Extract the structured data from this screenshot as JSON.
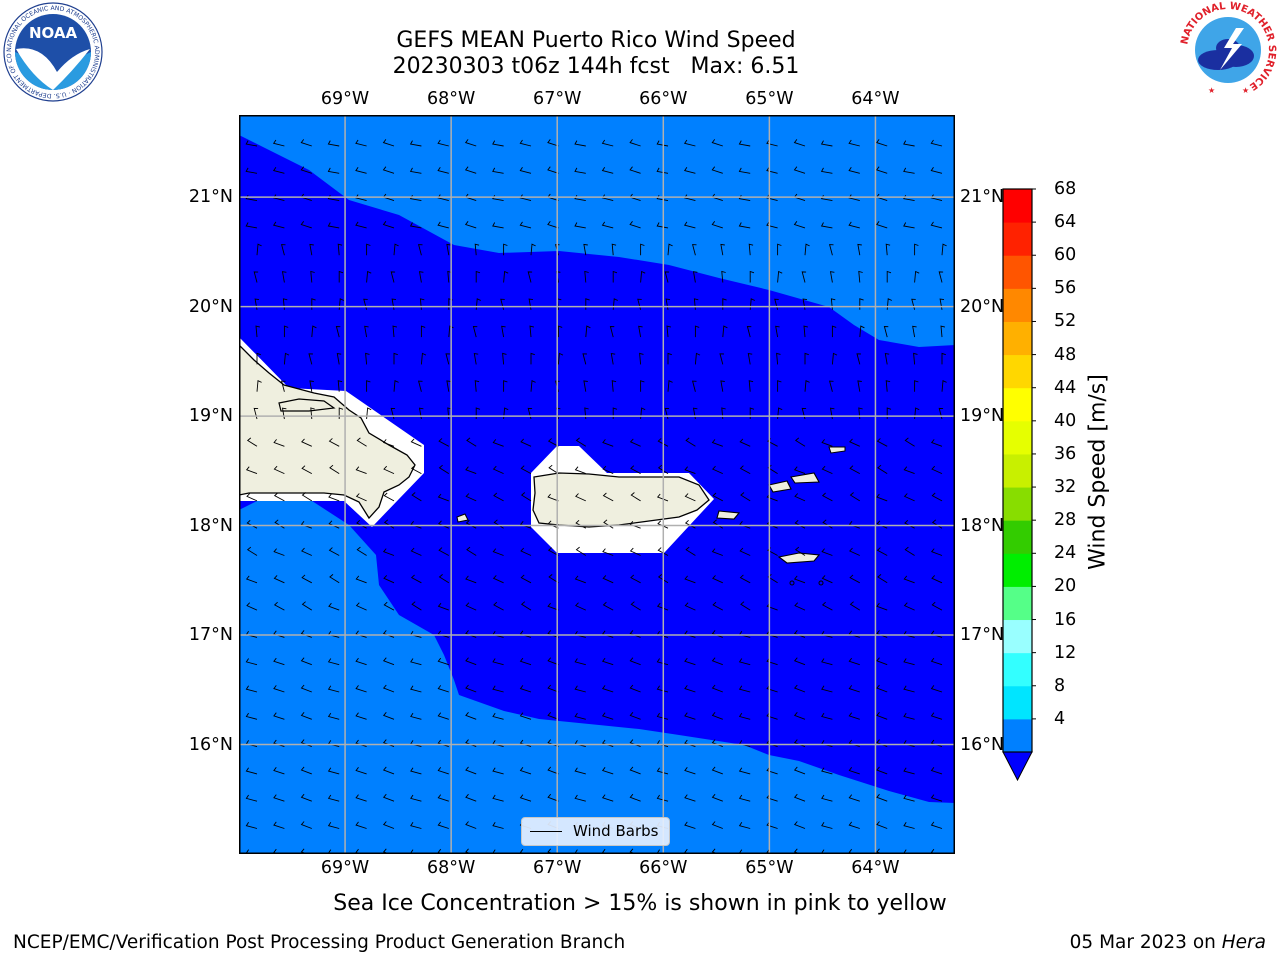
{
  "title": {
    "line1": "GEFS MEAN Puerto Rico Wind Speed",
    "line2": "20230303 t06z 144h fcst   Max: 6.51"
  },
  "map": {
    "lon_labels": [
      "69°W",
      "68°W",
      "67°W",
      "66°W",
      "65°W",
      "64°W"
    ],
    "lon_values": [
      -69,
      -68,
      -67,
      -66,
      -65,
      -64
    ],
    "lat_labels": [
      "21°N",
      "20°N",
      "19°N",
      "18°N",
      "17°N",
      "16°N"
    ],
    "lat_values": [
      21,
      20,
      19,
      18,
      17,
      16
    ],
    "lon_range": [
      -70.0,
      -63.25
    ],
    "lat_range": [
      15.0,
      21.75
    ],
    "land_color": "#efefdf",
    "grid": true,
    "wind_barb_direction": "mostly from the east, from the north near 19-20°N"
  },
  "colorbar": {
    "label": "Wind Speed [m/s]",
    "ticks": [
      "68",
      "64",
      "60",
      "56",
      "52",
      "48",
      "44",
      "40",
      "36",
      "32",
      "28",
      "24",
      "20",
      "16",
      "12",
      "8",
      "4"
    ],
    "bounds": [
      4,
      8,
      12,
      16,
      20,
      24,
      28,
      32,
      36,
      40,
      44,
      48,
      52,
      56,
      60,
      64,
      68
    ],
    "colors": [
      "#0080ff",
      "#00e5ff",
      "#33ffff",
      "#99ffff",
      "#55ff88",
      "#00ee00",
      "#33cc00",
      "#88dd00",
      "#c8f000",
      "#e6ff00",
      "#ffff00",
      "#ffd700",
      "#ffb000",
      "#ff8800",
      "#ff5500",
      "#ff2200",
      "#ff0000"
    ],
    "under_color": "#0000ff"
  },
  "legend": {
    "label": "Wind Barbs"
  },
  "note": "Sea Ice Concentration > 15% is shown in pink to yellow",
  "footer": {
    "left": "NCEP/EMC/Verification Post Processing Product Generation Branch",
    "right_date": "05 Mar 2023 on ",
    "right_host": "Hera"
  },
  "logos": {
    "noaa": {
      "text": "NOAA",
      "ring": "NATIONAL OCEANIC AND ATMOSPHERIC ADMINISTRATION · U.S. DEPARTMENT OF COMMERCE"
    },
    "nws": {
      "ring": "NATIONAL WEATHER SERVICE"
    }
  },
  "chart_data": {
    "type": "heatmap",
    "title": "GEFS MEAN Puerto Rico Wind Speed",
    "subtitle": "20230303 t06z 144h fcst   Max: 6.51",
    "xlabel": "",
    "ylabel": "",
    "xlim": [
      -70.0,
      -63.25
    ],
    "ylim": [
      15.0,
      21.75
    ],
    "colorbar_label": "Wind Speed [m/s]",
    "levels": [
      4,
      8,
      12,
      16,
      20,
      24,
      28,
      32,
      36,
      40,
      44,
      48,
      52,
      56,
      60,
      64,
      68
    ],
    "max": 6.51,
    "regions": [
      {
        "band": "<4",
        "description": "central Caribbean/Atlantic band around Puerto Rico and Hispaniola"
      },
      {
        "band": "4-8",
        "description": "northern Atlantic and southern Caribbean waters"
      }
    ],
    "legend": [
      "Wind Barbs"
    ]
  }
}
